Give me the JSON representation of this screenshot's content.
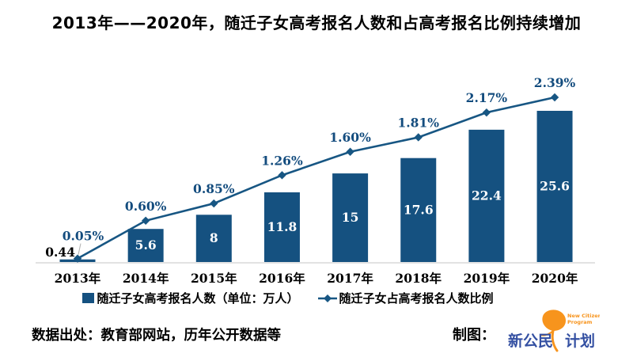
{
  "title": "2013年——2020年，随迁子女高考报名人数和占高考报名比例持续增加",
  "chart_data": {
    "type": "combo-bar-line",
    "categories": [
      "2013年",
      "2014年",
      "2015年",
      "2016年",
      "2017年",
      "2018年",
      "2019年",
      "2020年"
    ],
    "series": [
      {
        "name": "随迁子女高考报名人数（单位：万人）",
        "type": "bar",
        "unit": "万人",
        "values": [
          0.44,
          5.6,
          8,
          11.8,
          15,
          17.6,
          22.4,
          25.6
        ],
        "data_labels": [
          "0.44",
          "5.6",
          "8",
          "11.8",
          "15",
          "17.6",
          "22.4",
          "25.6"
        ]
      },
      {
        "name": "随迁子女占高考报名人数比例",
        "type": "line",
        "unit": "%",
        "values": [
          0.05,
          0.6,
          0.85,
          1.26,
          1.6,
          1.81,
          2.17,
          2.39
        ],
        "data_labels": [
          "0.05%",
          "0.60%",
          "0.85%",
          "1.26%",
          "1.60%",
          "1.81%",
          "2.17%",
          "2.39%"
        ]
      }
    ],
    "legend_position": "bottom",
    "gridlines": false,
    "ylim_bar": [
      0,
      26
    ],
    "ylim_line_pct": [
      0,
      2.5
    ],
    "colors": {
      "bar": "#155180",
      "line": "#175683",
      "data_label": "#134C7E",
      "bar_label_inside": "#FFFFFF",
      "bar_label_outside": "#000000",
      "axis_line": "#D9D9D9",
      "leader_line": "#AFAFAF",
      "category_label": "#000000"
    }
  },
  "legend": {
    "items": [
      {
        "icon": "bar-swatch",
        "label": "随迁子女高考报名人数（单位：万人）"
      },
      {
        "icon": "line-diamond-marker",
        "label": "随迁子女占高考报名人数比例"
      }
    ]
  },
  "footer": {
    "source": "数据出处：教育部网站，历年公开数据等",
    "credit_label": "制图：",
    "logo": {
      "name_left": "新公民",
      "name_right": "计划",
      "subtext_line1": "New Citizen",
      "subtext_line2": "Program",
      "leaf_color": "#F7941D",
      "text_color": "#3450A2"
    }
  }
}
